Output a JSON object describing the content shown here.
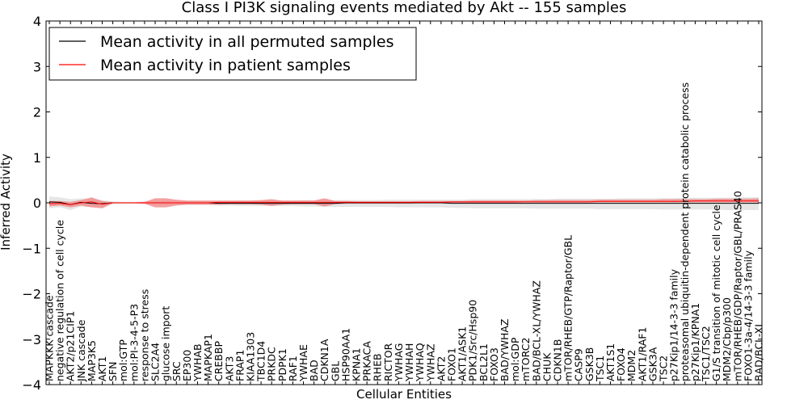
{
  "chart_data": {
    "type": "line",
    "title": "Class I PI3K signaling events mediated by Akt -- 155 samples",
    "xlabel": "Cellular Entities",
    "ylabel": "Inferred Activity",
    "ylim": [
      -4,
      4
    ],
    "yticks": [
      -4,
      -3,
      -2,
      -1,
      0,
      1,
      2,
      3,
      4
    ],
    "ytick_labels": [
      "−4",
      "−3",
      "−2",
      "−1",
      "0",
      "1",
      "2",
      "3",
      "4"
    ],
    "grid": false,
    "legend_position": "top-left",
    "categories": [
      "MAPKKK cascade",
      "negative regulation of cell cycle",
      "AKT2/p21CIP1",
      "JNK cascade",
      "MAP3K5",
      "AKT1",
      "SFN",
      "mol:GTP",
      "mol:PI-3-4-5-P3",
      "response to stress",
      "SLC2A4",
      "glucose import",
      "SRC",
      "EP300",
      "YWHAB",
      "MAPKAP1",
      "CREBBP",
      "AKT3",
      "FRAP1",
      "KIAA1303",
      "TBC1D4",
      "PRKDC",
      "PDPK1",
      "RAF1",
      "YWHAE",
      "BAD",
      "CDKN1A",
      "GBL",
      "HSP90AA1",
      "KPNA1",
      "PRKACA",
      "RHEB",
      "RICTOR",
      "YWHAG",
      "YWHAH",
      "YWHAQ",
      "YWHAZ",
      "AKT2",
      "FOXO1",
      "AKT1/ASK1",
      "PDK1/Src/Hsp90",
      "BCL2L1",
      "FOXO3",
      "BAD/YWHAZ",
      "mol:GDP",
      "mTORC2",
      "BAD/BCL-XL/YWHAZ",
      "CHUK",
      "CDKN1B",
      "mTOR/RHEB/GTP/Raptor/GBL",
      "CASP9",
      "GSK3B",
      "TSC1",
      "AKT1S1",
      "FOXO4",
      "MDM2",
      "AKT1/RAF1",
      "GSK3A",
      "TSC2",
      "p27Kip1/14-3-3 family",
      "proteasomal ubiquitin-dependent protein catabolic process",
      "p27Kip1/KPNA1",
      "TSC1/TSC2",
      "G1/S transition of mitotic cell cycle",
      "MDM2/Cbp/p300",
      "mTOR/RHEB/GDP/Raptor/GBL/PRAS40",
      "FOXO1-3a-4/14-3-3 family",
      "BAD/BCL-XL"
    ],
    "series": [
      {
        "name": "Mean activity in all permuted samples",
        "color": "#000000",
        "values": [
          0.02,
          0.01,
          -0.04,
          0.01,
          -0.01,
          -0.02,
          0.0,
          0.0,
          0.0,
          0.0,
          0.0,
          0.0,
          0.0,
          0.0,
          0.0,
          0.0,
          -0.01,
          -0.01,
          -0.01,
          -0.01,
          -0.01,
          -0.01,
          -0.01,
          -0.01,
          -0.01,
          -0.01,
          -0.01,
          -0.01,
          0.0,
          0.0,
          0.0,
          0.0,
          0.0,
          0.0,
          0.0,
          0.0,
          0.0,
          0.0,
          -0.01,
          -0.01,
          -0.01,
          -0.01,
          -0.01,
          -0.01,
          -0.01,
          -0.01,
          -0.01,
          -0.01,
          -0.01,
          -0.01,
          -0.01,
          -0.01,
          -0.01,
          -0.01,
          -0.01,
          -0.01,
          -0.01,
          -0.01,
          -0.01,
          -0.01,
          -0.01,
          -0.01,
          -0.01,
          -0.01,
          -0.01,
          -0.01,
          -0.01,
          -0.01
        ],
        "band_lower": [
          -0.12,
          -0.1,
          -0.16,
          -0.08,
          -0.09,
          -0.1,
          -0.03,
          -0.02,
          -0.02,
          -0.03,
          -0.04,
          -0.05,
          -0.05,
          -0.05,
          -0.05,
          -0.05,
          -0.06,
          -0.06,
          -0.07,
          -0.07,
          -0.07,
          -0.07,
          -0.07,
          -0.07,
          -0.08,
          -0.08,
          -0.09,
          -0.09,
          -0.09,
          -0.09,
          -0.09,
          -0.09,
          -0.09,
          -0.1,
          -0.1,
          -0.1,
          -0.1,
          -0.1,
          -0.11,
          -0.11,
          -0.12,
          -0.12,
          -0.12,
          -0.12,
          -0.12,
          -0.12,
          -0.13,
          -0.13,
          -0.13,
          -0.13,
          -0.13,
          -0.13,
          -0.14,
          -0.14,
          -0.14,
          -0.14,
          -0.14,
          -0.14,
          -0.15,
          -0.15,
          -0.15,
          -0.15,
          -0.15,
          -0.15,
          -0.16,
          -0.16,
          -0.16,
          -0.16
        ],
        "band_upper": [
          0.14,
          0.12,
          0.08,
          0.1,
          0.08,
          0.06,
          0.03,
          0.02,
          0.02,
          0.03,
          0.04,
          0.04,
          0.04,
          0.04,
          0.04,
          0.04,
          0.04,
          0.04,
          0.05,
          0.05,
          0.05,
          0.05,
          0.05,
          0.05,
          0.06,
          0.06,
          0.06,
          0.06,
          0.06,
          0.06,
          0.06,
          0.06,
          0.07,
          0.07,
          0.07,
          0.07,
          0.07,
          0.07,
          0.07,
          0.07,
          0.08,
          0.08,
          0.08,
          0.08,
          0.08,
          0.08,
          0.08,
          0.08,
          0.09,
          0.09,
          0.09,
          0.09,
          0.09,
          0.09,
          0.1,
          0.1,
          0.1,
          0.1,
          0.1,
          0.1,
          0.11,
          0.11,
          0.11,
          0.11,
          0.11,
          0.12,
          0.12,
          0.12
        ]
      },
      {
        "name": "Mean activity in patient samples",
        "color": "#ff0000",
        "values": [
          -0.02,
          -0.01,
          -0.04,
          0.0,
          0.02,
          -0.03,
          0.0,
          0.0,
          0.0,
          0.0,
          0.0,
          0.0,
          0.0,
          0.0,
          0.0,
          0.0,
          0.01,
          0.01,
          0.01,
          0.01,
          0.01,
          0.01,
          0.01,
          0.01,
          0.01,
          0.01,
          0.01,
          0.01,
          0.01,
          0.01,
          0.01,
          0.01,
          0.01,
          0.01,
          0.01,
          0.01,
          0.01,
          0.01,
          0.02,
          0.02,
          0.02,
          0.02,
          0.02,
          0.02,
          0.02,
          0.02,
          0.02,
          0.02,
          0.02,
          0.02,
          0.02,
          0.02,
          0.03,
          0.03,
          0.03,
          0.03,
          0.03,
          0.03,
          0.03,
          0.03,
          0.03,
          0.04,
          0.04,
          0.04,
          0.04,
          0.04,
          0.04,
          0.04
        ],
        "band_lower": [
          -0.08,
          -0.06,
          -0.1,
          -0.06,
          -0.1,
          -0.12,
          -0.01,
          -0.01,
          -0.01,
          -0.02,
          -0.1,
          -0.1,
          -0.06,
          -0.04,
          -0.04,
          -0.04,
          -0.04,
          -0.03,
          -0.03,
          -0.03,
          -0.04,
          -0.07,
          -0.04,
          -0.03,
          -0.03,
          -0.03,
          -0.08,
          -0.03,
          -0.02,
          -0.02,
          -0.02,
          -0.02,
          -0.02,
          -0.02,
          -0.02,
          -0.01,
          -0.01,
          -0.01,
          0.0,
          0.0,
          0.0,
          0.0,
          0.0,
          0.0,
          0.0,
          0.01,
          0.01,
          0.01,
          0.01,
          0.01,
          0.01,
          0.01,
          0.01,
          0.01,
          0.01,
          0.01,
          0.01,
          0.01,
          0.01,
          0.01,
          0.01,
          0.01,
          0.01,
          0.01,
          0.01,
          0.01,
          0.01,
          0.01
        ],
        "band_upper": [
          0.04,
          0.04,
          0.02,
          0.06,
          0.12,
          0.04,
          0.01,
          0.01,
          0.01,
          0.02,
          0.1,
          0.1,
          0.07,
          0.05,
          0.05,
          0.05,
          0.05,
          0.05,
          0.05,
          0.05,
          0.06,
          0.08,
          0.05,
          0.05,
          0.05,
          0.05,
          0.1,
          0.04,
          0.04,
          0.03,
          0.03,
          0.03,
          0.03,
          0.03,
          0.03,
          0.04,
          0.04,
          0.04,
          0.04,
          0.04,
          0.05,
          0.05,
          0.05,
          0.05,
          0.05,
          0.05,
          0.06,
          0.06,
          0.06,
          0.06,
          0.06,
          0.06,
          0.07,
          0.07,
          0.07,
          0.07,
          0.07,
          0.07,
          0.08,
          0.08,
          0.08,
          0.08,
          0.08,
          0.09,
          0.09,
          0.09,
          0.09,
          0.1
        ]
      }
    ]
  },
  "colors": {
    "permuted_line": "#000000",
    "permuted_band": "#e6e6e6",
    "patient_line": "#ff0000",
    "patient_band": "#f08080"
  }
}
